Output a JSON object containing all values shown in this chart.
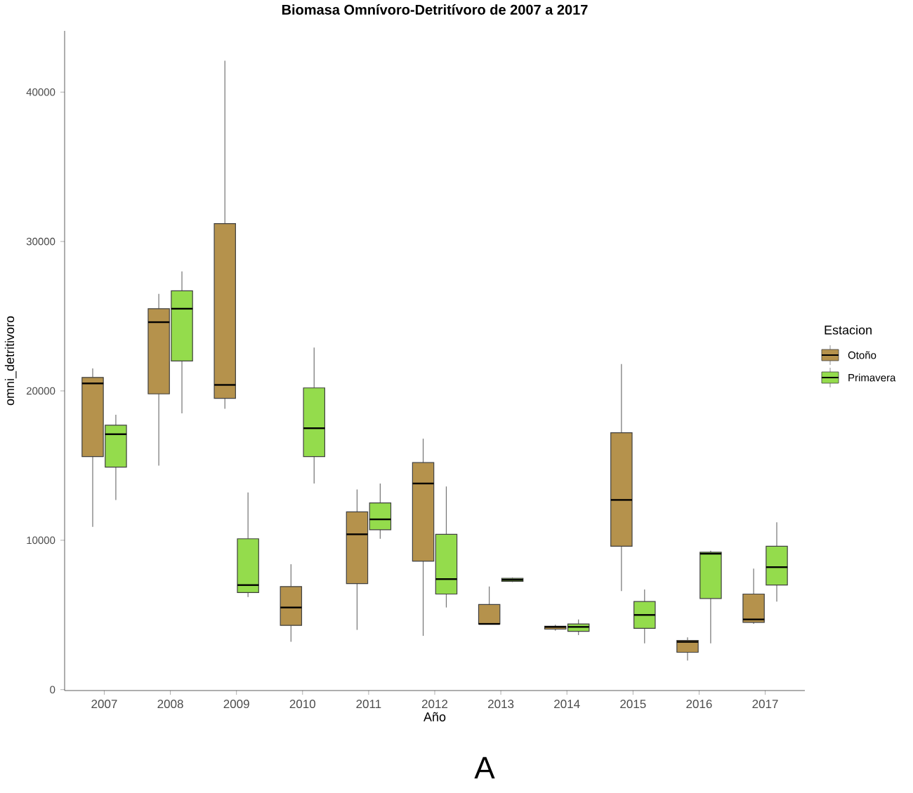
{
  "chart_data": {
    "type": "box",
    "title": "Biomasa Omnívoro-Detritívoro de 2007 a 2017",
    "xlabel": "Año",
    "ylabel": "omni_detritivoro",
    "legend_title": "Estacion",
    "categories": [
      "2007",
      "2008",
      "2009",
      "2010",
      "2011",
      "2012",
      "2013",
      "2014",
      "2015",
      "2016",
      "2017"
    ],
    "ylim": [
      -60,
      44100
    ],
    "yticks": [
      0,
      10000,
      20000,
      30000,
      40000
    ],
    "legend": "right",
    "grid": false,
    "series": [
      {
        "name": "Otoño",
        "color": "#b5924c",
        "boxes": [
          {
            "low": 10900,
            "q1": 15600,
            "median": 20500,
            "q3": 20900,
            "high": 21500
          },
          {
            "low": 15000,
            "q1": 19800,
            "median": 24600,
            "q3": 25500,
            "high": 26500
          },
          {
            "low": 18800,
            "q1": 19500,
            "median": 20400,
            "q3": 31200,
            "high": 42100
          },
          {
            "low": 3200,
            "q1": 4300,
            "median": 5500,
            "q3": 6900,
            "high": 8400
          },
          {
            "low": 4000,
            "q1": 7100,
            "median": 10400,
            "q3": 11900,
            "high": 13400
          },
          {
            "low": 3600,
            "q1": 8600,
            "median": 13800,
            "q3": 15200,
            "high": 16800
          },
          {
            "low": 4400,
            "q1": 4400,
            "median": 4400,
            "q3": 5700,
            "high": 6900
          },
          {
            "low": 3950,
            "q1": 4050,
            "median": 4200,
            "q3": 4250,
            "high": 4350
          },
          {
            "low": 6600,
            "q1": 9600,
            "median": 12700,
            "q3": 17200,
            "high": 21800
          },
          {
            "low": 1950,
            "q1": 2500,
            "median": 3200,
            "q3": 3300,
            "high": 3500
          },
          {
            "low": 4400,
            "q1": 4500,
            "median": 4700,
            "q3": 6400,
            "high": 8100
          }
        ]
      },
      {
        "name": "Primavera",
        "color": "#94dc4c",
        "boxes": [
          {
            "low": 12700,
            "q1": 14900,
            "median": 17100,
            "q3": 17700,
            "high": 18400
          },
          {
            "low": 18500,
            "q1": 22000,
            "median": 25500,
            "q3": 26700,
            "high": 28000
          },
          {
            "low": 6200,
            "q1": 6500,
            "median": 7000,
            "q3": 10100,
            "high": 13200
          },
          {
            "low": 13800,
            "q1": 15600,
            "median": 17500,
            "q3": 20200,
            "high": 22900
          },
          {
            "low": 10100,
            "q1": 10700,
            "median": 11400,
            "q3": 12500,
            "high": 13800
          },
          {
            "low": 5500,
            "q1": 6400,
            "median": 7400,
            "q3": 10400,
            "high": 13600
          },
          {
            "low": 7200,
            "q1": 7250,
            "median": 7350,
            "q3": 7450,
            "high": 7500
          },
          {
            "low": 3650,
            "q1": 3900,
            "median": 4200,
            "q3": 4400,
            "high": 4700
          },
          {
            "low": 3100,
            "q1": 4100,
            "median": 5000,
            "q3": 5900,
            "high": 6700
          },
          {
            "low": 3100,
            "q1": 6100,
            "median": 9100,
            "q3": 9200,
            "high": 9300
          },
          {
            "low": 5900,
            "q1": 7000,
            "median": 8200,
            "q3": 9600,
            "high": 11200
          }
        ]
      }
    ],
    "annotations": [
      "A"
    ]
  }
}
